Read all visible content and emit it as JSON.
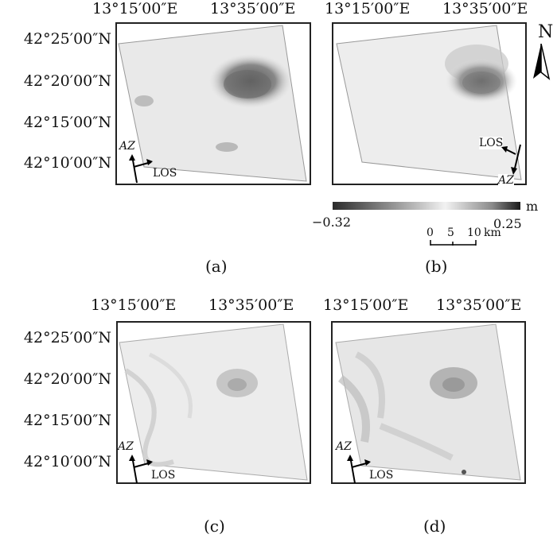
{
  "longitude_labels": [
    "13°15′00″E",
    "13°35′00″E"
  ],
  "latitude_labels": [
    "42°25′00″N",
    "42°20′00″N",
    "42°15′00″N",
    "42°10′00″N"
  ],
  "direction_labels": {
    "azimuth": "AZ",
    "line_of_sight": "LOS"
  },
  "north_label": "N",
  "colorbar": {
    "unit": "m",
    "min": "−0.32",
    "max": "0.25"
  },
  "scalebar": {
    "ticks": [
      "0",
      "5",
      "10"
    ],
    "unit": "km"
  },
  "panel_captions": [
    "(a)",
    "(b)",
    "(c)",
    "(d)"
  ]
}
